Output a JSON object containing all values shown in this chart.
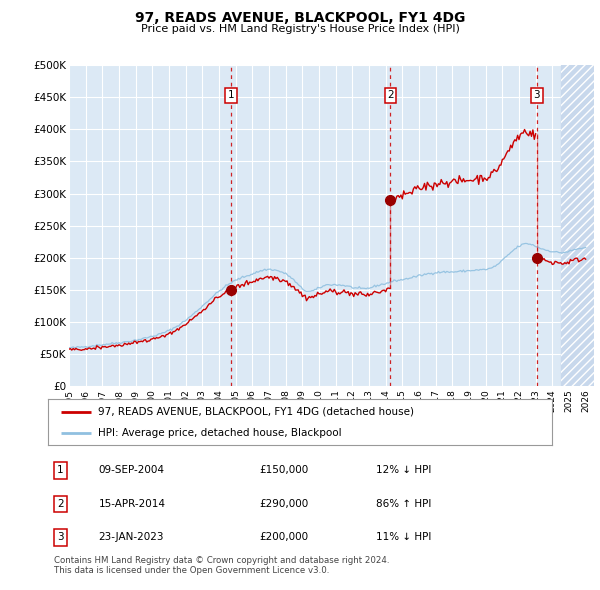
{
  "title": "97, READS AVENUE, BLACKPOOL, FY1 4DG",
  "subtitle": "Price paid vs. HM Land Registry's House Price Index (HPI)",
  "ylim": [
    0,
    500000
  ],
  "yticks": [
    0,
    50000,
    100000,
    150000,
    200000,
    250000,
    300000,
    350000,
    400000,
    450000,
    500000
  ],
  "ytick_labels": [
    "£0",
    "£50K",
    "£100K",
    "£150K",
    "£200K",
    "£250K",
    "£300K",
    "£350K",
    "£400K",
    "£450K",
    "£500K"
  ],
  "xlim_start": 1995.0,
  "xlim_end": 2026.5,
  "xticks": [
    1995,
    1996,
    1997,
    1998,
    1999,
    2000,
    2001,
    2002,
    2003,
    2004,
    2005,
    2006,
    2007,
    2008,
    2009,
    2010,
    2011,
    2012,
    2013,
    2014,
    2015,
    2016,
    2017,
    2018,
    2019,
    2020,
    2021,
    2022,
    2023,
    2024,
    2025,
    2026
  ],
  "plot_bg_color": "#dce9f5",
  "grid_color": "#ffffff",
  "hatch_color": "#c8d8ec",
  "hpi_color": "#90c0e0",
  "price_color": "#cc0000",
  "vline_color": "#cc0000",
  "marker_color": "#990000",
  "sale_points": [
    {
      "year": 2004.71,
      "price": 150000,
      "label": "1"
    },
    {
      "year": 2014.29,
      "price": 290000,
      "label": "2"
    },
    {
      "year": 2023.07,
      "price": 200000,
      "label": "3"
    }
  ],
  "sale_table": [
    {
      "num": "1",
      "date": "09-SEP-2004",
      "price": "£150,000",
      "note": "12% ↓ HPI"
    },
    {
      "num": "2",
      "date": "15-APR-2014",
      "price": "£290,000",
      "note": "86% ↑ HPI"
    },
    {
      "num": "3",
      "date": "23-JAN-2023",
      "price": "£200,000",
      "note": "11% ↓ HPI"
    }
  ],
  "legend_entries": [
    "97, READS AVENUE, BLACKPOOL, FY1 4DG (detached house)",
    "HPI: Average price, detached house, Blackpool"
  ],
  "footer": "Contains HM Land Registry data © Crown copyright and database right 2024.\nThis data is licensed under the Open Government Licence v3.0.",
  "future_start": 2024.5
}
